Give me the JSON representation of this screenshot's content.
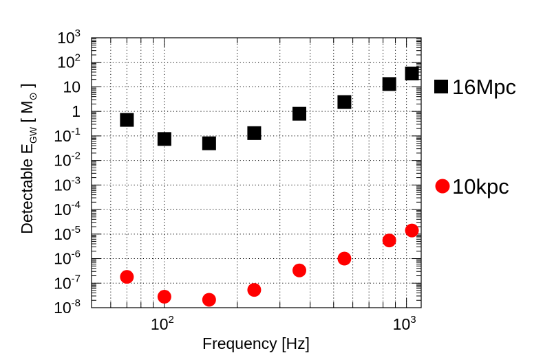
{
  "chart_data": {
    "type": "scatter",
    "title": "",
    "xlabel": "Frequency [Hz]",
    "ylabel": {
      "text": "Detectable E",
      "sub": "GW",
      "unit_open": " [ M",
      "unit_sub": "⊙",
      "unit_close": " ]"
    },
    "x_scale": "log",
    "y_scale": "log",
    "xlim": [
      50,
      1150
    ],
    "ylim": [
      1e-08,
      1000
    ],
    "grid": true,
    "legend_placement": "right",
    "x_tick_labels": [
      {
        "value": 100,
        "base": "10",
        "exp": "2"
      },
      {
        "value": 1000,
        "base": "10",
        "exp": "3"
      }
    ],
    "y_tick_labels": [
      {
        "value": 1000,
        "base": "10",
        "exp": "3"
      },
      {
        "value": 100,
        "base": "10",
        "exp": "2"
      },
      {
        "value": 10,
        "base": "10",
        "exp": ""
      },
      {
        "value": 1,
        "base": "1",
        "exp": ""
      },
      {
        "value": 0.1,
        "base": "10",
        "exp": "-1"
      },
      {
        "value": 0.01,
        "base": "10",
        "exp": "-2"
      },
      {
        "value": 0.001,
        "base": "10",
        "exp": "-3"
      },
      {
        "value": 0.0001,
        "base": "10",
        "exp": "-4"
      },
      {
        "value": 1e-05,
        "base": "10",
        "exp": "-5"
      },
      {
        "value": 1e-06,
        "base": "10",
        "exp": "-6"
      },
      {
        "value": 1e-07,
        "base": "10",
        "exp": "-7"
      },
      {
        "value": 1e-08,
        "base": "10",
        "exp": "-8"
      }
    ],
    "series": [
      {
        "name": "16Mpc",
        "marker": "square",
        "color": "#000000",
        "x": [
          70,
          100,
          153,
          235,
          361,
          554,
          849,
          1053
        ],
        "y": [
          0.45,
          0.075,
          0.05,
          0.13,
          0.8,
          2.4,
          13,
          35
        ]
      },
      {
        "name": "10kpc",
        "marker": "circle",
        "color": "#ff0000",
        "x": [
          70,
          100,
          153,
          235,
          361,
          554,
          849,
          1053
        ],
        "y": [
          1.8e-07,
          2.8e-08,
          2.1e-08,
          5.3e-08,
          3.3e-07,
          1e-06,
          5.5e-06,
          1.4e-05
        ]
      }
    ]
  }
}
